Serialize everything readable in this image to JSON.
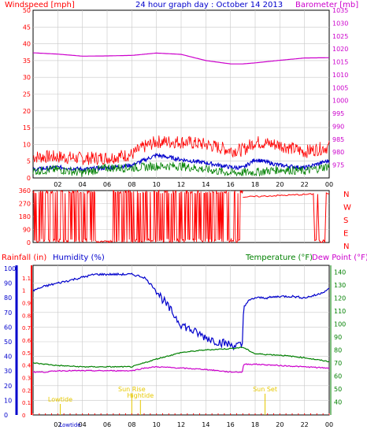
{
  "header": {
    "left_title": "Windspeed [mph]",
    "center_title": "24 hour graph day : October 14 2013",
    "right_title": "Barometer [mb]"
  },
  "colors": {
    "bg": "#ffffff",
    "plot_bg": "#ffffff",
    "grid": "#c8c8c8",
    "frame": "#000000",
    "red": "#ff0000",
    "blue": "#0000cc",
    "green": "#008000",
    "magenta": "#cc00cc",
    "yellow": "#e6c800"
  },
  "chart_data": [
    {
      "id": "wind",
      "type": "line",
      "x_ticks": [
        "02",
        "04",
        "06",
        "08",
        "10",
        "12",
        "14",
        "16",
        "18",
        "20",
        "22",
        "00"
      ],
      "left_axis": {
        "label": "Windspeed [mph]",
        "ylim": [
          0,
          50
        ],
        "ticks": [
          0,
          5,
          10,
          15,
          20,
          25,
          30,
          35,
          40,
          45,
          50
        ]
      },
      "right_axis": {
        "label": "Barometer [mb]",
        "ylim": [
          970,
          1035
        ],
        "ticks": [
          975,
          980,
          985,
          990,
          995,
          1000,
          1005,
          1010,
          1015,
          1020,
          1025,
          1030,
          1035
        ]
      },
      "series": [
        {
          "axis": "right",
          "color": "magenta",
          "hours": [
            0,
            2,
            4,
            6,
            8,
            10,
            12,
            14,
            16,
            17,
            18,
            20,
            22,
            24
          ],
          "values": [
            1018.5,
            1018,
            1017.2,
            1017.3,
            1017.5,
            1018.4,
            1017.9,
            1015.5,
            1014.2,
            1014.2,
            1014.6,
            1015.6,
            1016.5,
            1016.6
          ]
        },
        {
          "axis": "left",
          "color": "red",
          "base_hours": [
            0,
            2,
            4,
            6,
            8,
            9,
            10,
            12,
            14,
            16,
            17,
            18,
            20,
            22,
            24
          ],
          "base_values": [
            5.5,
            5.5,
            5,
            5.2,
            6.2,
            8.5,
            10,
            10,
            9.2,
            7.5,
            7.5,
            10,
            9,
            7,
            8.5
          ],
          "noise": 4
        },
        {
          "axis": "left",
          "color": "blue",
          "base_hours": [
            0,
            2,
            4,
            6,
            8,
            10,
            12,
            14,
            16,
            17,
            18,
            20,
            22,
            24
          ],
          "base_values": [
            2.5,
            3.2,
            2.6,
            3,
            3.8,
            6.8,
            5.5,
            4.5,
            3.2,
            3,
            5.5,
            3.8,
            3,
            5.2
          ],
          "noise": 1.2
        },
        {
          "axis": "left",
          "color": "green",
          "base_hours": [
            0,
            2,
            4,
            6,
            8,
            10,
            12,
            14,
            16,
            18,
            20,
            22,
            24
          ],
          "base_values": [
            1.5,
            2,
            1,
            2.5,
            2.5,
            3,
            3,
            2,
            1,
            1.2,
            2,
            1.5,
            3
          ],
          "noise": 2.6
        }
      ]
    },
    {
      "id": "direction",
      "type": "scatter",
      "x_ticks": [
        "02",
        "04",
        "06",
        "08",
        "10",
        "12",
        "14",
        "16",
        "18",
        "20",
        "22",
        "00"
      ],
      "left_axis": {
        "ylim": [
          0,
          360
        ],
        "ticks": [
          0,
          90,
          180,
          270,
          360
        ]
      },
      "right_labels": [
        "N",
        "W",
        "S",
        "E",
        "N"
      ],
      "series": [
        {
          "color": "red",
          "segments_hours": [
            [
              0,
              17
            ],
            [
              17,
              24
            ]
          ],
          "values": [
            360,
            315
          ]
        }
      ]
    },
    {
      "id": "climate",
      "type": "line",
      "x_ticks": [
        "02",
        "04",
        "06",
        "08",
        "10",
        "12",
        "14",
        "16",
        "18",
        "20",
        "22",
        "00"
      ],
      "left_labels": {
        "rainfall": "Rainfall (in)",
        "humidity": "Humidity (%)"
      },
      "right_labels": {
        "temperature": "Temperature (°F)",
        "dewpoint": "Dew Point (°F)"
      },
      "rain_axis": {
        "ylim": [
          0,
          1.2
        ],
        "ticks": [
          "0",
          "0.1",
          "0.2",
          "0.3",
          "0.4",
          "0.5",
          "0.6",
          "0.7",
          "0.8",
          "0.9",
          "1",
          "1.1"
        ]
      },
      "humidity_axis": {
        "ylim": [
          0,
          100
        ],
        "ticks": [
          "0",
          "10",
          "20",
          "30",
          "40",
          "50",
          "60",
          "70",
          "80",
          "90",
          "100"
        ]
      },
      "temp_axis": {
        "ylim": [
          30,
          145
        ],
        "ticks": [
          "40",
          "50",
          "60",
          "70",
          "80",
          "90",
          "100",
          "110",
          "120",
          "130",
          "140"
        ]
      },
      "series": [
        {
          "name": "Humidity",
          "axis": "humidity",
          "color": "blue",
          "hours": [
            0,
            1,
            2,
            3,
            4,
            5,
            6,
            7,
            8,
            9,
            10,
            11,
            12,
            13,
            14,
            15,
            16,
            17,
            17.05,
            17.5,
            18,
            19,
            20,
            21,
            22,
            23,
            24
          ],
          "values": [
            85,
            88,
            90,
            92,
            94,
            96,
            96,
            96,
            96,
            94,
            85,
            73,
            62,
            57,
            53,
            50,
            48,
            47,
            74,
            78,
            80,
            80,
            81,
            81,
            80,
            82,
            86
          ]
        },
        {
          "name": "Temperature",
          "axis": "temp",
          "color": "green",
          "hours": [
            0,
            1,
            2,
            4,
            6,
            8,
            10,
            12,
            14,
            16,
            17,
            18,
            20,
            22,
            24
          ],
          "values": [
            70,
            69,
            68,
            67,
            67,
            67,
            73,
            78,
            80,
            81,
            82,
            77,
            76,
            74,
            71
          ]
        },
        {
          "name": "Dew Point",
          "axis": "temp",
          "color": "magenta",
          "hours": [
            0,
            1,
            2,
            4,
            6,
            8,
            9,
            10,
            12,
            14,
            16,
            17,
            17.05,
            18,
            20,
            22,
            24
          ],
          "values": [
            63,
            63,
            64,
            64,
            64,
            64,
            66,
            67,
            66,
            65,
            63,
            63,
            69,
            69,
            68,
            67,
            66
          ]
        }
      ],
      "annotations": [
        {
          "text": "Sun Rise",
          "hour": 8.0
        },
        {
          "text": "Lowtide",
          "hour": 2.2
        },
        {
          "text": "Hightide",
          "hour": 8.7
        },
        {
          "text": "Sun Set",
          "hour": 18.8
        }
      ],
      "bottom_labels": [
        {
          "text": "Lowtide",
          "hour": 3.0
        }
      ]
    }
  ]
}
